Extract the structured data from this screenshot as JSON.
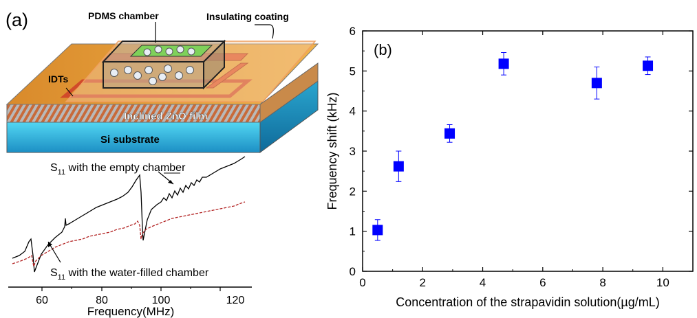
{
  "panel_a": {
    "tag": "(a)",
    "device_labels": {
      "chamber": "PDMS chamber",
      "coating": "Insulating coating",
      "idts": "IDTs",
      "film": "Inclined ZnO film",
      "substrate": "Si substrate"
    },
    "curve_empty_main": "S",
    "curve_empty_sub": "11",
    "curve_empty_rest": " with the empty chamber",
    "curve_water_main": "S",
    "curve_water_sub": "11",
    "curve_water_rest": " with the water-filled chamber",
    "xlabel": "Frequency(MHz)",
    "x_ticks": [
      "60",
      "80",
      "100",
      "120"
    ],
    "colors": {
      "empty": "#000000",
      "water": "#b22222"
    }
  },
  "chart_data": [
    {
      "type": "scatter",
      "panel": "(b)",
      "xlabel": "Concentration of the strapavidin solution(µg/mL)",
      "ylabel": "Frequency shift (kHz)",
      "xlim": [
        0,
        11
      ],
      "ylim": [
        0,
        6
      ],
      "x_ticks": [
        "0",
        "2",
        "4",
        "6",
        "8",
        "10"
      ],
      "y_ticks": [
        "0",
        "1",
        "2",
        "3",
        "4",
        "5",
        "6"
      ],
      "grid": false,
      "marker": "square",
      "color": "#0000ff",
      "points": [
        {
          "x": 0.5,
          "y": 1.03,
          "err": 0.26
        },
        {
          "x": 1.2,
          "y": 2.62,
          "err": 0.38
        },
        {
          "x": 2.9,
          "y": 3.44,
          "err": 0.22
        },
        {
          "x": 4.7,
          "y": 5.18,
          "err": 0.28
        },
        {
          "x": 7.8,
          "y": 4.7,
          "err": 0.4
        },
        {
          "x": 9.5,
          "y": 5.13,
          "err": 0.22
        }
      ]
    }
  ]
}
